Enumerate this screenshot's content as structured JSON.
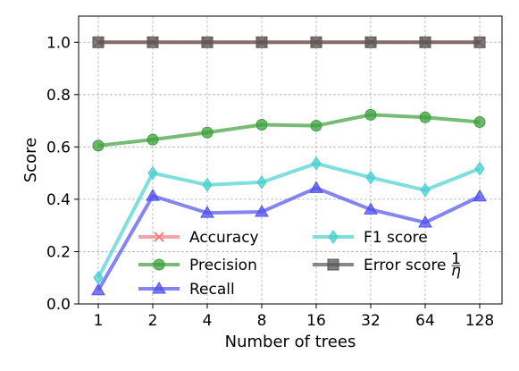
{
  "chart_data": {
    "type": "line",
    "x": [
      "1",
      "2",
      "4",
      "8",
      "16",
      "32",
      "64",
      "128"
    ],
    "xlabel": "Number of trees",
    "ylabel": "Score",
    "ylim": [
      0.0,
      1.1
    ],
    "yticks": [
      "0.0",
      "0.2",
      "0.4",
      "0.6",
      "0.8",
      "1.0"
    ],
    "grid": true,
    "legend_position": "lower-center",
    "series": [
      {
        "name": "Accuracy",
        "values": [
          1.0,
          1.0,
          1.0,
          1.0,
          1.0,
          1.0,
          1.0,
          1.0
        ],
        "color": "#f08080",
        "marker": "x"
      },
      {
        "name": "Precision",
        "values": [
          0.605,
          0.628,
          0.655,
          0.685,
          0.681,
          0.723,
          0.713,
          0.695
        ],
        "color": "#3ca03c",
        "marker": "circle"
      },
      {
        "name": "Recall",
        "values": [
          0.052,
          0.413,
          0.348,
          0.352,
          0.443,
          0.361,
          0.311,
          0.411
        ],
        "color": "#5050ee",
        "marker": "triangle"
      },
      {
        "name": "F1 score",
        "values": [
          0.1,
          0.5,
          0.455,
          0.465,
          0.537,
          0.483,
          0.435,
          0.517
        ],
        "color": "#48d0d0",
        "marker": "diamond"
      },
      {
        "name": "Error score",
        "name_suffix": "1/η",
        "values": [
          1.0,
          1.0,
          1.0,
          1.0,
          1.0,
          1.0,
          1.0,
          1.0
        ],
        "color": "#555555",
        "marker": "square"
      }
    ]
  }
}
